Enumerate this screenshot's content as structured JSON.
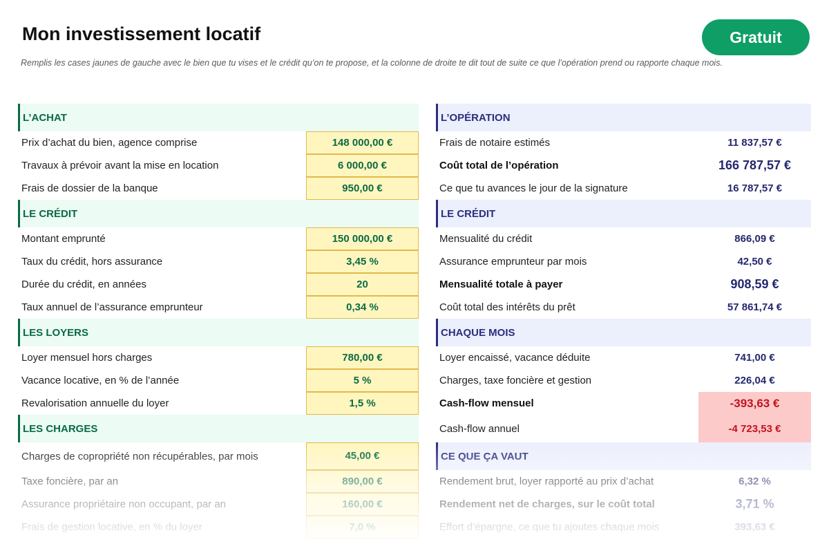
{
  "header": {
    "title": "Mon investissement locatif",
    "subtitle": "Remplis les cases jaunes de gauche avec le bien que tu vises et le crédit qu’on te propose, et la colonne de droite te dit tout de suite ce que l’opération prend ou rapporte chaque mois.",
    "badge": "Gratuit"
  },
  "colors": {
    "badge": "#0e9e66",
    "left_accent": "#0a6a45",
    "right_accent": "#2c2e7e",
    "input_fill": "#fff6bf",
    "negative_fill": "#fdcaca",
    "negative_text": "#c0141e"
  },
  "left": {
    "achat": {
      "title": "L’ACHAT",
      "rows": [
        {
          "label": "Prix d’achat du bien, agence comprise",
          "value": "148 000,00 €"
        },
        {
          "label": "Travaux à prévoir avant la mise en location",
          "value": "6 000,00 €"
        },
        {
          "label": "Frais de dossier de la banque",
          "value": "950,00 €"
        }
      ]
    },
    "credit": {
      "title": "LE CRÉDIT",
      "rows": [
        {
          "label": "Montant emprunté",
          "value": "150 000,00 €"
        },
        {
          "label": "Taux du crédit, hors assurance",
          "value": "3,45 %"
        },
        {
          "label": "Durée du crédit, en années",
          "value": "20"
        },
        {
          "label": "Taux annuel de l’assurance emprunteur",
          "value": "0,34 %"
        }
      ]
    },
    "loyers": {
      "title": "LES LOYERS",
      "rows": [
        {
          "label": "Loyer mensuel hors charges",
          "value": "780,00 €"
        },
        {
          "label": "Vacance locative, en % de l’année",
          "value": "5 %"
        },
        {
          "label": "Revalorisation annuelle du loyer",
          "value": "1,5 %"
        }
      ]
    },
    "charges": {
      "title": "LES CHARGES",
      "rows": [
        {
          "label": "Charges de copropriété non récupérables, par mois",
          "value": "45,00 €"
        },
        {
          "label": "Taxe foncière, par an",
          "value": "890,00 €"
        },
        {
          "label": "Assurance propriétaire non occupant, par an",
          "value": "160,00 €"
        },
        {
          "label": "Frais de gestion locative, en % du loyer",
          "value": "7,0 %"
        }
      ]
    }
  },
  "right": {
    "operation": {
      "title": "L’OPÉRATION",
      "rows": [
        {
          "label": "Frais de notaire estimés",
          "value": "11 837,57 €"
        },
        {
          "label": "Coût total de l’opération",
          "value": "166 787,57 €"
        },
        {
          "label": "Ce que tu avances le jour de la signature",
          "value": "16 787,57 €"
        }
      ]
    },
    "credit": {
      "title": "LE CRÉDIT",
      "rows": [
        {
          "label": "Mensualité du crédit",
          "value": "866,09 €"
        },
        {
          "label": "Assurance emprunteur par mois",
          "value": "42,50 €"
        },
        {
          "label": "Mensualité totale à payer",
          "value": "908,59 €"
        },
        {
          "label": "Coût total des intérêts du prêt",
          "value": "57 861,74 €"
        }
      ]
    },
    "mois": {
      "title": "CHAQUE MOIS",
      "rows": [
        {
          "label": "Loyer encaissé, vacance déduite",
          "value": "741,00 €"
        },
        {
          "label": "Charges, taxe foncière et gestion",
          "value": "226,04 €"
        },
        {
          "label": "Cash-flow mensuel",
          "value": "-393,63 €"
        },
        {
          "label": "Cash-flow annuel",
          "value": "-4 723,53 €"
        }
      ]
    },
    "vaut": {
      "title": "CE QUE ÇA VAUT",
      "rows": [
        {
          "label": "Rendement brut, loyer rapporté au prix d’achat",
          "value": "6,32 %"
        },
        {
          "label": "Rendement net de charges, sur le coût total",
          "value": "3,71 %"
        },
        {
          "label": "Effort d’épargne, ce que tu ajoutes chaque mois",
          "value": "393,63 €"
        }
      ]
    }
  }
}
